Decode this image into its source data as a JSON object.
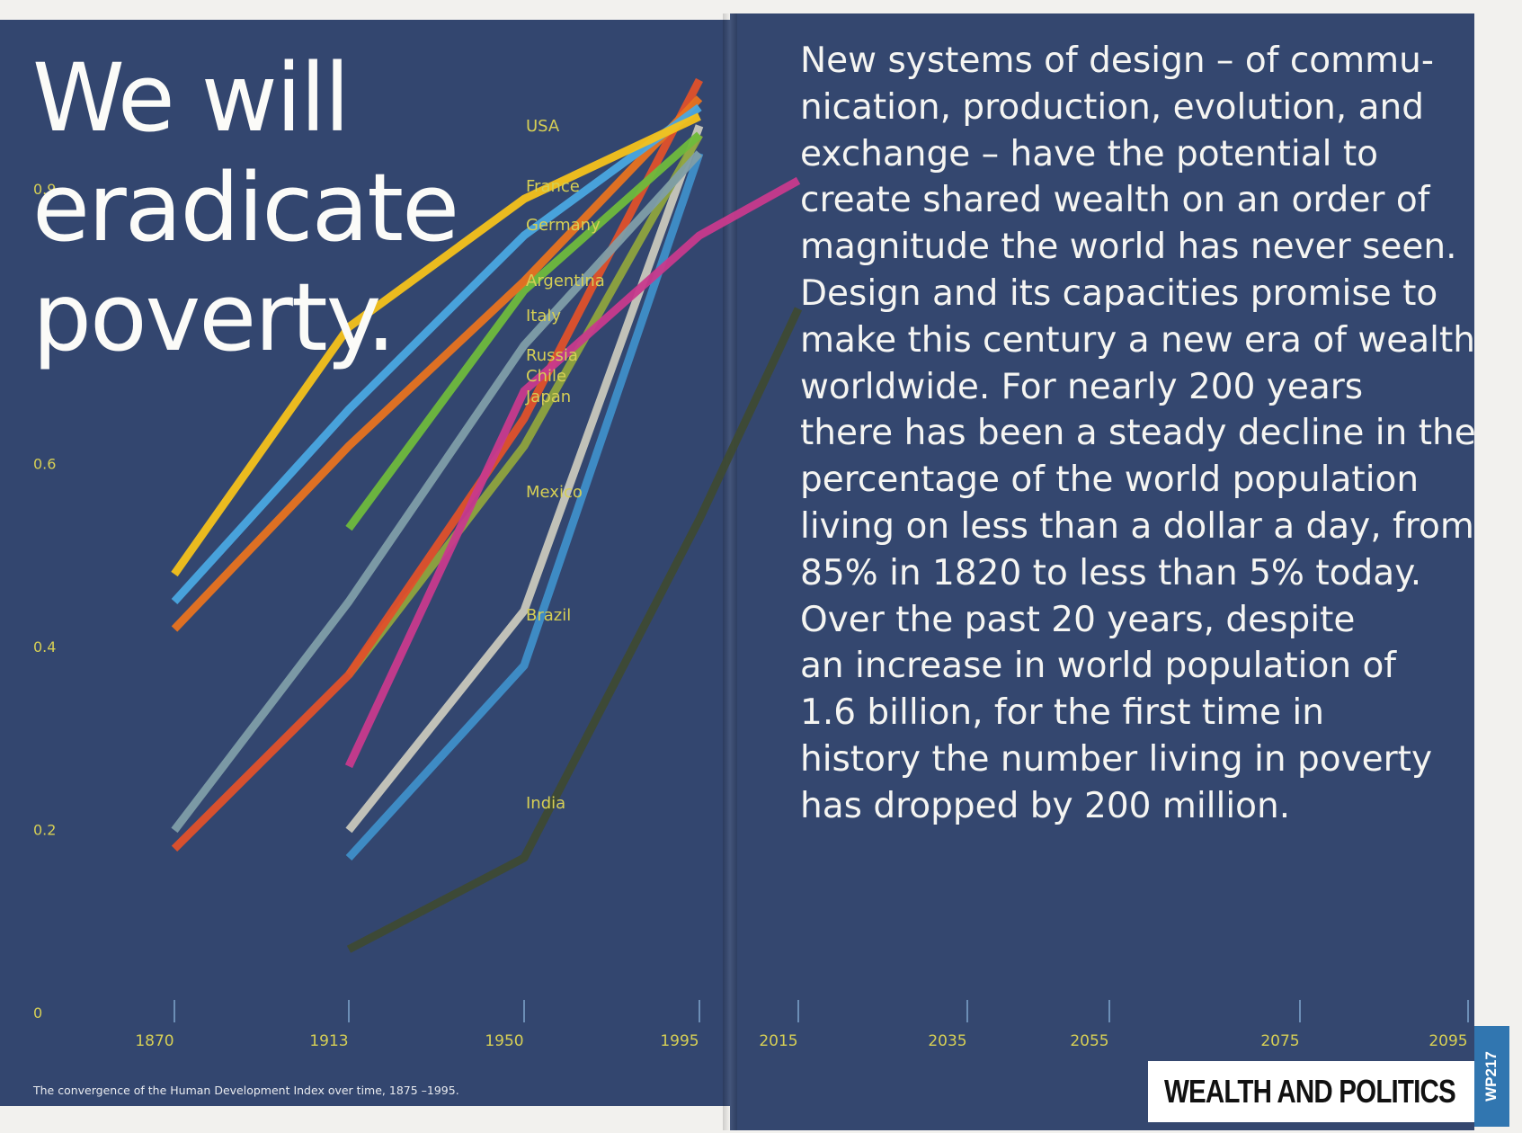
{
  "headline": [
    "We will",
    "eradicate",
    "poverty."
  ],
  "body_text": [
    "New systems of design – of commu-",
    "nication, production, evolution, and",
    "exchange – have the potential to",
    "create shared wealth on an order of",
    "magnitude the world has never seen.",
    "Design and its capacities promise to",
    "make this century a new era of wealth",
    "worldwide. For nearly 200 years",
    "there has been a steady decline in the",
    "percentage of the world population",
    "living on less than a dollar a day, from",
    "85% in 1820 to less than 5% today.",
    "Over the past 20 years, despite",
    "an increase in world population of",
    "1.6 billion, for the first time in",
    "history the number living in poverty",
    "has dropped by 200 million."
  ],
  "caption": "The convergence of the Human Development Index over time, 1875 –1995.",
  "footer": {
    "section_title": "WEALTH AND POLITICS",
    "page_label": "WP217"
  },
  "colors": {
    "background": "#33466f",
    "axis_text": "#d6cf55",
    "tick": "#7fa6cf"
  },
  "chart_data": {
    "type": "line",
    "title": "",
    "xlabel": "",
    "ylabel": "",
    "ylim": [
      0,
      0.9
    ],
    "y_ticks": [
      0,
      0.2,
      0.4,
      0.6,
      0.9
    ],
    "x_ticks": [
      1870,
      1913,
      1950,
      1995,
      2015,
      2035,
      2055,
      2075,
      2095
    ],
    "x_tick_labels": [
      "1870",
      "1913",
      "1950",
      "1995",
      "2015",
      "2035",
      "2055",
      "2075",
      "2095"
    ],
    "series": [
      {
        "name": "USA",
        "color": "#f5c21a",
        "points": [
          [
            1870,
            0.48
          ],
          [
            1913,
            0.75
          ],
          [
            1950,
            0.89
          ],
          [
            1995,
            0.98
          ]
        ]
      },
      {
        "name": "France",
        "color": "#4aa8e0",
        "points": [
          [
            1870,
            0.45
          ],
          [
            1913,
            0.66
          ],
          [
            1950,
            0.85
          ],
          [
            1995,
            0.99
          ]
        ]
      },
      {
        "name": "Germany",
        "color": "#e8731f",
        "points": [
          [
            1870,
            0.42
          ],
          [
            1913,
            0.62
          ],
          [
            1950,
            0.8
          ],
          [
            1995,
            1.0
          ]
        ]
      },
      {
        "name": "Argentina",
        "color": "#6fba3c",
        "points": [
          [
            1913,
            0.53
          ],
          [
            1950,
            0.79
          ],
          [
            1995,
            0.96
          ]
        ]
      },
      {
        "name": "Italy",
        "color": "#7f9ea8",
        "points": [
          [
            1870,
            0.2
          ],
          [
            1913,
            0.45
          ],
          [
            1950,
            0.73
          ],
          [
            1995,
            0.94
          ]
        ]
      },
      {
        "name": "Russia",
        "color": "#c83a8c",
        "points": [
          [
            1913,
            0.27
          ],
          [
            1950,
            0.68
          ],
          [
            1995,
            0.85
          ],
          [
            2015,
            0.91
          ]
        ]
      },
      {
        "name": "Chile",
        "color": "#e0512a",
        "points": [
          [
            1870,
            0.18
          ],
          [
            1913,
            0.37
          ],
          [
            1950,
            0.65
          ],
          [
            1995,
            1.02
          ]
        ]
      },
      {
        "name": "Japan",
        "color": "#8fa43d",
        "points": [
          [
            1913,
            0.37
          ],
          [
            1950,
            0.62
          ],
          [
            1995,
            0.96
          ]
        ]
      },
      {
        "name": "Mexico",
        "color": "#c9c8bc",
        "points": [
          [
            1913,
            0.2
          ],
          [
            1950,
            0.44
          ],
          [
            1995,
            0.97
          ]
        ]
      },
      {
        "name": "Brazil",
        "color": "#3f8fc8",
        "points": [
          [
            1913,
            0.17
          ],
          [
            1950,
            0.38
          ],
          [
            1995,
            0.94
          ]
        ]
      },
      {
        "name": "India",
        "color": "#3e4a33",
        "points": [
          [
            1913,
            0.07
          ],
          [
            1950,
            0.17
          ],
          [
            1995,
            0.54
          ],
          [
            2015,
            0.77
          ]
        ]
      }
    ]
  }
}
